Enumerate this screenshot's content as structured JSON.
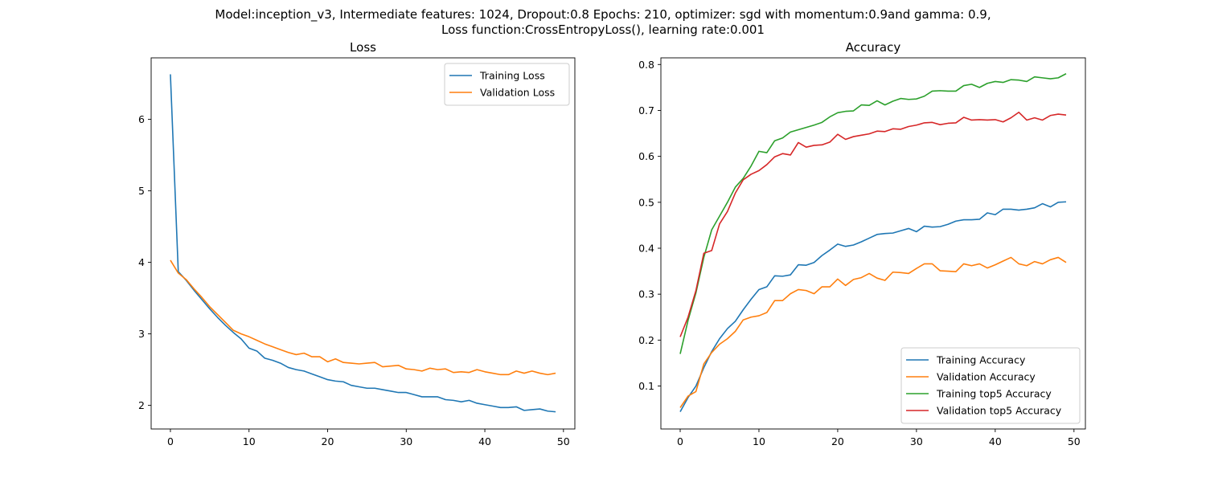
{
  "figure": {
    "title_line1": "Model:inception_v3, Intermediate features: 1024, Dropout:0.8 Epochs: 210, optimizer: sgd with momentum:0.9and gamma: 0.9,",
    "title_line2": "Loss function:CrossEntropyLoss(), learning rate:0.001"
  },
  "chart_data": [
    {
      "type": "line",
      "title": "Loss",
      "xlabel": "",
      "ylabel": "",
      "xlim": [
        -2.45,
        51.45
      ],
      "ylim": [
        1.67,
        6.86
      ],
      "xticks": [
        0,
        10,
        20,
        30,
        40,
        50
      ],
      "yticks": [
        2,
        3,
        4,
        5,
        6
      ],
      "grid": false,
      "legend": "top-right",
      "series": [
        {
          "name": "Training Loss",
          "color": "#1f77b4",
          "values": [
            6.63,
            3.87,
            3.75,
            3.61,
            3.48,
            3.35,
            3.23,
            3.12,
            3.02,
            2.93,
            2.8,
            2.76,
            2.66,
            2.63,
            2.59,
            2.53,
            2.5,
            2.48,
            2.44,
            2.4,
            2.36,
            2.34,
            2.33,
            2.28,
            2.26,
            2.24,
            2.24,
            2.22,
            2.2,
            2.18,
            2.18,
            2.15,
            2.12,
            2.12,
            2.12,
            2.08,
            2.07,
            2.05,
            2.07,
            2.03,
            2.01,
            1.99,
            1.97,
            1.97,
            1.98,
            1.93,
            1.94,
            1.95,
            1.92,
            1.91
          ]
        },
        {
          "name": "Validation Loss",
          "color": "#ff7f0e",
          "values": [
            4.03,
            3.85,
            3.76,
            3.63,
            3.51,
            3.38,
            3.27,
            3.16,
            3.05,
            3.0,
            2.96,
            2.91,
            2.86,
            2.82,
            2.78,
            2.74,
            2.71,
            2.73,
            2.68,
            2.68,
            2.61,
            2.65,
            2.6,
            2.59,
            2.58,
            2.59,
            2.6,
            2.54,
            2.55,
            2.56,
            2.51,
            2.5,
            2.48,
            2.52,
            2.5,
            2.51,
            2.46,
            2.47,
            2.46,
            2.5,
            2.47,
            2.45,
            2.43,
            2.43,
            2.48,
            2.45,
            2.48,
            2.45,
            2.43,
            2.45
          ]
        }
      ]
    },
    {
      "type": "line",
      "title": "Accuracy",
      "xlabel": "",
      "ylabel": "",
      "xlim": [
        -2.45,
        51.45
      ],
      "ylim": [
        0.0065,
        0.8145
      ],
      "xticks": [
        0,
        10,
        20,
        30,
        40,
        50
      ],
      "yticks": [
        0.1,
        0.2,
        0.3,
        0.4,
        0.5,
        0.6,
        0.7,
        0.8
      ],
      "grid": false,
      "legend": "bottom-right",
      "series": [
        {
          "name": "Training Accuracy",
          "color": "#1f77b4",
          "values": [
            0.044,
            0.075,
            0.1,
            0.14,
            0.175,
            0.203,
            0.225,
            0.241,
            0.266,
            0.289,
            0.31,
            0.316,
            0.34,
            0.339,
            0.342,
            0.364,
            0.363,
            0.369,
            0.384,
            0.396,
            0.409,
            0.404,
            0.407,
            0.414,
            0.422,
            0.43,
            0.432,
            0.433,
            0.438,
            0.443,
            0.436,
            0.448,
            0.446,
            0.447,
            0.452,
            0.459,
            0.462,
            0.462,
            0.463,
            0.477,
            0.473,
            0.485,
            0.485,
            0.483,
            0.485,
            0.488,
            0.497,
            0.49,
            0.5,
            0.501
          ]
        },
        {
          "name": "Validation Accuracy",
          "color": "#ff7f0e",
          "values": [
            0.053,
            0.078,
            0.088,
            0.148,
            0.173,
            0.191,
            0.203,
            0.219,
            0.244,
            0.25,
            0.253,
            0.26,
            0.286,
            0.286,
            0.301,
            0.31,
            0.308,
            0.301,
            0.316,
            0.316,
            0.333,
            0.319,
            0.332,
            0.336,
            0.345,
            0.335,
            0.33,
            0.348,
            0.347,
            0.345,
            0.356,
            0.366,
            0.366,
            0.351,
            0.35,
            0.349,
            0.366,
            0.362,
            0.366,
            0.357,
            0.364,
            0.372,
            0.38,
            0.366,
            0.362,
            0.371,
            0.366,
            0.375,
            0.38,
            0.369
          ]
        },
        {
          "name": "Training top5 Accuracy",
          "color": "#2ca02c",
          "values": [
            0.17,
            0.243,
            0.303,
            0.38,
            0.44,
            0.47,
            0.5,
            0.533,
            0.552,
            0.579,
            0.611,
            0.608,
            0.634,
            0.64,
            0.653,
            0.658,
            0.663,
            0.668,
            0.674,
            0.686,
            0.695,
            0.698,
            0.699,
            0.712,
            0.711,
            0.721,
            0.712,
            0.72,
            0.726,
            0.724,
            0.725,
            0.731,
            0.742,
            0.743,
            0.742,
            0.742,
            0.754,
            0.757,
            0.75,
            0.759,
            0.763,
            0.761,
            0.767,
            0.766,
            0.763,
            0.773,
            0.771,
            0.769,
            0.771,
            0.78
          ]
        },
        {
          "name": "Validation top5 Accuracy",
          "color": "#d62728",
          "values": [
            0.207,
            0.25,
            0.308,
            0.389,
            0.395,
            0.453,
            0.48,
            0.52,
            0.549,
            0.561,
            0.569,
            0.582,
            0.599,
            0.606,
            0.603,
            0.63,
            0.62,
            0.624,
            0.625,
            0.631,
            0.648,
            0.637,
            0.643,
            0.646,
            0.649,
            0.655,
            0.654,
            0.66,
            0.659,
            0.665,
            0.668,
            0.673,
            0.674,
            0.669,
            0.672,
            0.673,
            0.685,
            0.679,
            0.68,
            0.679,
            0.68,
            0.675,
            0.684,
            0.696,
            0.679,
            0.684,
            0.679,
            0.689,
            0.692,
            0.69
          ]
        }
      ]
    }
  ]
}
